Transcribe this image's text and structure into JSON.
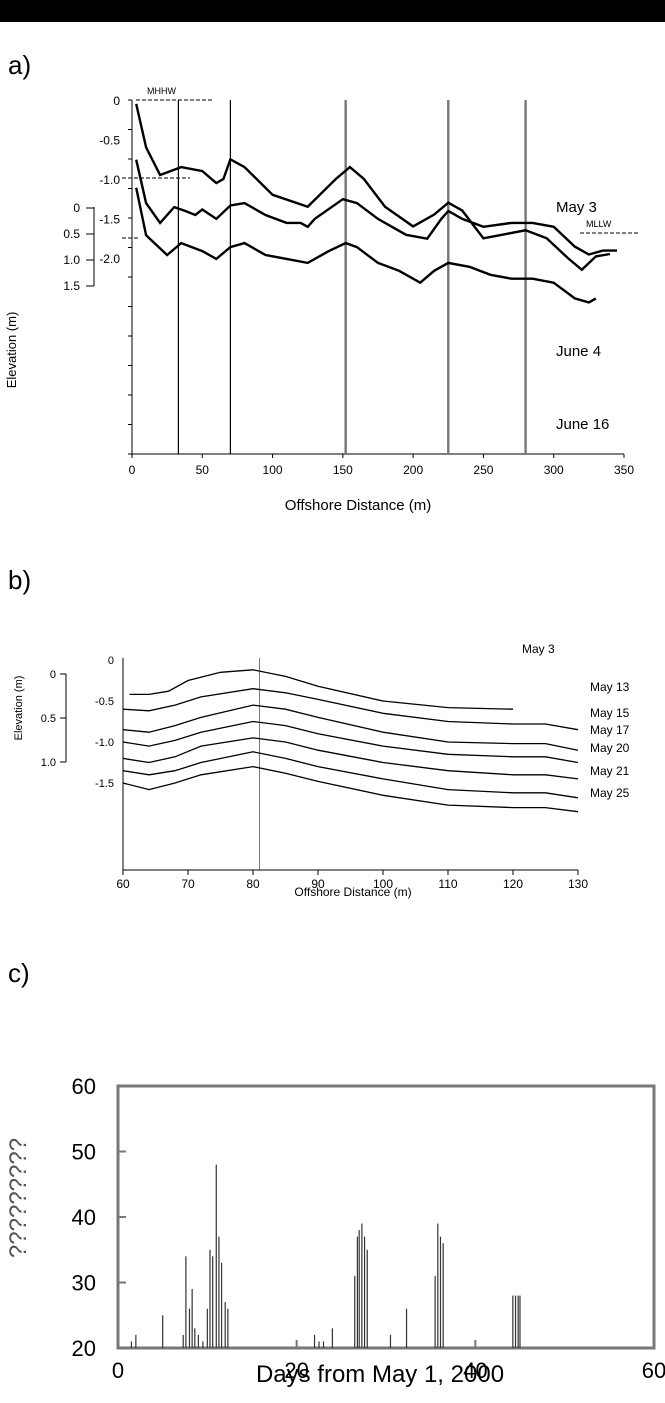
{
  "chart_data": [
    {
      "panel_label": "a)",
      "type": "line",
      "xlabel": "Offshore Distance (m)",
      "ylabel": "Elevation (m)",
      "xlim": [
        0,
        350
      ],
      "x_ticks": [
        "0",
        "50",
        "100",
        "150",
        "200",
        "250",
        "300",
        "350"
      ],
      "y_ticks_inner": [
        "0",
        "-0.5",
        "-1.0",
        "-1.5",
        "-2.0"
      ],
      "y_ticks_outer": [
        "0",
        "0.5",
        "1.0",
        "1.5"
      ],
      "reference_lines": [
        {
          "label": "MHHW"
        },
        {
          "label": "MLLW"
        }
      ],
      "vertical_lines_x": [
        33,
        70,
        152,
        225,
        280
      ],
      "series": [
        {
          "name": "May 3",
          "x": [
            3,
            10,
            20,
            35,
            50,
            60,
            65,
            70,
            80,
            100,
            125,
            145,
            155,
            165,
            180,
            200,
            215,
            225,
            235,
            250,
            265,
            280,
            295,
            310,
            320,
            330,
            340
          ],
          "y": [
            -0.05,
            -0.6,
            -0.95,
            -0.85,
            -0.9,
            -1.05,
            -1.0,
            -0.75,
            -0.85,
            -1.2,
            -1.35,
            -1.0,
            -0.85,
            -1.0,
            -1.35,
            -1.6,
            -1.45,
            -1.3,
            -1.4,
            -1.75,
            -1.7,
            -1.65,
            -1.75,
            -2.0,
            -2.15,
            -1.98,
            -1.95
          ]
        },
        {
          "name": "June 4",
          "x": [
            3,
            10,
            20,
            30,
            38,
            45,
            50,
            60,
            70,
            80,
            95,
            110,
            120,
            125,
            130,
            150,
            160,
            175,
            195,
            210,
            220,
            225,
            235,
            250,
            270,
            285,
            300,
            315,
            325,
            335,
            345
          ],
          "y": [
            -0.3,
            -0.85,
            -1.1,
            -0.9,
            -0.95,
            -1.0,
            -0.93,
            -1.05,
            -0.88,
            -0.85,
            -1.0,
            -1.1,
            -1.1,
            -1.15,
            -1.05,
            -0.8,
            -0.85,
            -1.05,
            -1.25,
            -1.3,
            -1.05,
            -0.95,
            -1.05,
            -1.15,
            -1.1,
            -1.1,
            -1.15,
            -1.4,
            -1.5,
            -1.45,
            -1.45
          ]
        },
        {
          "name": "June 16",
          "x": [
            3,
            10,
            25,
            35,
            50,
            60,
            70,
            80,
            95,
            110,
            125,
            140,
            152,
            160,
            175,
            190,
            205,
            215,
            225,
            240,
            255,
            270,
            285,
            300,
            315,
            325,
            330
          ],
          "y": [
            -0.15,
            -0.75,
            -1.0,
            -0.85,
            -0.95,
            -1.05,
            -0.9,
            -0.85,
            -1.0,
            -1.05,
            -1.1,
            -0.95,
            -0.85,
            -0.9,
            -1.1,
            -1.2,
            -1.35,
            -1.2,
            -1.1,
            -1.15,
            -1.25,
            -1.3,
            -1.3,
            -1.35,
            -1.55,
            -1.6,
            -1.55
          ]
        }
      ]
    },
    {
      "panel_label": "b)",
      "type": "line",
      "xlabel": "Offshore Distance (m)",
      "ylabel": "Elevation (m)",
      "xlim": [
        60,
        130
      ],
      "x_ticks": [
        "60",
        "70",
        "80",
        "90",
        "100",
        "110",
        "120",
        "130"
      ],
      "y_ticks_inner": [
        "0",
        "-0.5",
        "-1.0",
        "-1.5"
      ],
      "y_ticks_outer": [
        "0",
        "0.5",
        "1.0"
      ],
      "vertical_lines_x": [
        81
      ],
      "series": [
        {
          "name": "May 3",
          "x": [
            61,
            64,
            67,
            70,
            75,
            80,
            85,
            90,
            100,
            110,
            120
          ],
          "y": [
            -0.42,
            -0.42,
            -0.38,
            -0.25,
            -0.15,
            -0.12,
            -0.2,
            -0.32,
            -0.5,
            -0.58,
            -0.6
          ]
        },
        {
          "name": "May 13",
          "x": [
            60,
            64,
            68,
            72,
            80,
            85,
            90,
            100,
            110,
            120,
            125,
            130
          ],
          "y": [
            -0.6,
            -0.62,
            -0.55,
            -0.45,
            -0.35,
            -0.4,
            -0.48,
            -0.65,
            -0.75,
            -0.78,
            -0.78,
            -0.85
          ]
        },
        {
          "name": "May 15",
          "x": [
            60,
            64,
            68,
            72,
            80,
            85,
            90,
            100,
            110,
            120,
            125,
            130
          ],
          "y": [
            -0.85,
            -0.88,
            -0.8,
            -0.7,
            -0.55,
            -0.6,
            -0.7,
            -0.88,
            -1.0,
            -1.02,
            -1.02,
            -1.1
          ]
        },
        {
          "name": "May 17",
          "x": [
            60,
            64,
            68,
            72,
            80,
            85,
            90,
            100,
            110,
            120,
            125,
            130
          ],
          "y": [
            -1.0,
            -1.05,
            -0.98,
            -0.88,
            -0.75,
            -0.8,
            -0.9,
            -1.05,
            -1.15,
            -1.18,
            -1.18,
            -1.25
          ]
        },
        {
          "name": "May 20",
          "x": [
            60,
            64,
            68,
            72,
            80,
            85,
            90,
            100,
            110,
            120,
            125,
            130
          ],
          "y": [
            -1.2,
            -1.25,
            -1.18,
            -1.05,
            -0.95,
            -1.0,
            -1.1,
            -1.25,
            -1.35,
            -1.4,
            -1.4,
            -1.45
          ]
        },
        {
          "name": "May 21",
          "x": [
            60,
            64,
            68,
            72,
            80,
            85,
            90,
            100,
            110,
            120,
            125,
            130
          ],
          "y": [
            -1.35,
            -1.4,
            -1.35,
            -1.25,
            -1.12,
            -1.2,
            -1.3,
            -1.45,
            -1.58,
            -1.62,
            -1.62,
            -1.68
          ]
        },
        {
          "name": "May 25",
          "x": [
            60,
            64,
            68,
            72,
            80,
            85,
            90,
            100,
            110,
            120,
            125,
            130
          ],
          "y": [
            -1.5,
            -1.58,
            -1.5,
            -1.4,
            -1.3,
            -1.38,
            -1.48,
            -1.65,
            -1.77,
            -1.8,
            -1.8,
            -1.85
          ]
        }
      ]
    },
    {
      "panel_label": "c)",
      "type": "bar",
      "xlabel": "Days from May 1, 2000",
      "ylabel": "?????????",
      "xlim": [
        0,
        60
      ],
      "ylim": [
        20,
        60
      ],
      "x_ticks": [
        "0",
        "20",
        "40",
        "60"
      ],
      "y_ticks": [
        "20",
        "30",
        "40",
        "50",
        "60"
      ],
      "x": [
        1.5,
        2,
        5,
        7.3,
        7.6,
        8,
        8.3,
        8.6,
        9,
        9.5,
        10,
        10.3,
        10.6,
        11,
        11.3,
        11.6,
        12,
        12.3,
        22,
        22.5,
        23,
        24,
        26.5,
        26.8,
        27,
        27.3,
        27.6,
        27.9,
        30.5,
        32.3,
        35.5,
        35.8,
        36.1,
        36.4,
        44.2,
        44.5,
        44.8,
        45
      ],
      "values": [
        21,
        22,
        25,
        22,
        34,
        26,
        29,
        23,
        22,
        21,
        26,
        35,
        34,
        48,
        37,
        33,
        27,
        26,
        22,
        21,
        21,
        23,
        31,
        37,
        38,
        39,
        37,
        35,
        22,
        26,
        31,
        39,
        37,
        36,
        28,
        28,
        28,
        28
      ]
    }
  ]
}
